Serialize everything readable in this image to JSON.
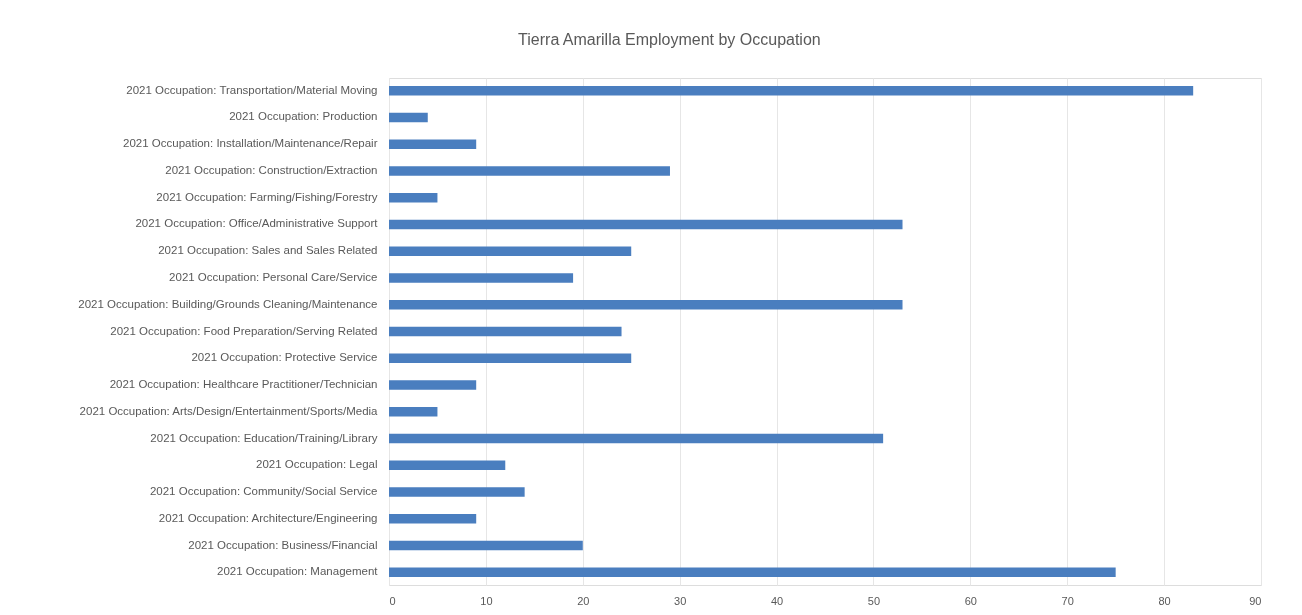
{
  "chart_data": {
    "type": "bar",
    "orientation": "horizontal",
    "title": "Tierra Amarilla Employment by Occupation",
    "categories": [
      "2021 Occupation: Transportation/Material Moving",
      "2021 Occupation: Production",
      "2021 Occupation: Installation/Maintenance/Repair",
      "2021 Occupation: Construction/Extraction",
      "2021 Occupation: Farming/Fishing/Forestry",
      "2021 Occupation: Office/Administrative Support",
      "2021 Occupation: Sales and Sales Related",
      "2021 Occupation: Personal Care/Service",
      "2021 Occupation: Building/Grounds Cleaning/Maintenance",
      "2021 Occupation: Food Preparation/Serving Related",
      "2021 Occupation: Protective Service",
      "2021 Occupation: Healthcare Practitioner/Technician",
      "2021 Occupation: Arts/Design/Entertainment/Sports/Media",
      "2021 Occupation: Education/Training/Library",
      "2021 Occupation: Legal",
      "2021 Occupation: Community/Social Service",
      "2021 Occupation: Architecture/Engineering",
      "2021 Occupation: Business/Financial",
      "2021 Occupation: Management"
    ],
    "values": [
      83,
      4,
      9,
      29,
      5,
      53,
      25,
      19,
      53,
      24,
      25,
      9,
      5,
      51,
      12,
      14,
      9,
      20,
      75
    ],
    "color": "#4a7ebf",
    "xlim": [
      0,
      90
    ],
    "xticks": [
      0,
      10,
      20,
      30,
      40,
      50,
      60,
      70,
      80,
      90
    ],
    "grid": "x"
  }
}
